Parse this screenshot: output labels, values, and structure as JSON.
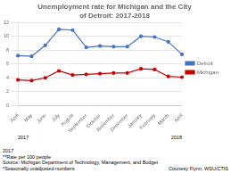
{
  "chart_data": {
    "type": "line",
    "title": "Unemployment rate for Michigan and the City\nof Detroit: 2017-2018",
    "categories": [
      "April",
      "May",
      "June",
      "July",
      "August",
      "September",
      "October",
      "November",
      "December",
      "January",
      "February",
      "March",
      "April"
    ],
    "series": [
      {
        "name": "Detroit",
        "color": "#4472C4",
        "marker": "circle",
        "values": [
          7.2,
          7.1,
          8.7,
          11.0,
          10.9,
          8.4,
          8.6,
          8.5,
          8.5,
          10.0,
          9.9,
          9.2,
          7.4
        ]
      },
      {
        "name": "Michigan",
        "color": "#CC0000",
        "marker": "circle",
        "values": [
          3.7,
          3.6,
          4.0,
          5.0,
          4.4,
          4.5,
          4.6,
          4.7,
          4.7,
          5.3,
          5.2,
          4.2,
          4.1
        ]
      }
    ],
    "ylim": [
      0,
      12
    ],
    "yticks": [
      0,
      2,
      4,
      6,
      8,
      10,
      12
    ],
    "grid": true,
    "legend": "right",
    "annotations": [
      "2017",
      "2018",
      "2017",
      "**Rate per 100 people",
      "Source: Michigan Department of Technology, Management, and Budget",
      "*Seasonally unadjusted numbers",
      "Courtesy Flynn, WSU/CTIS"
    ]
  }
}
